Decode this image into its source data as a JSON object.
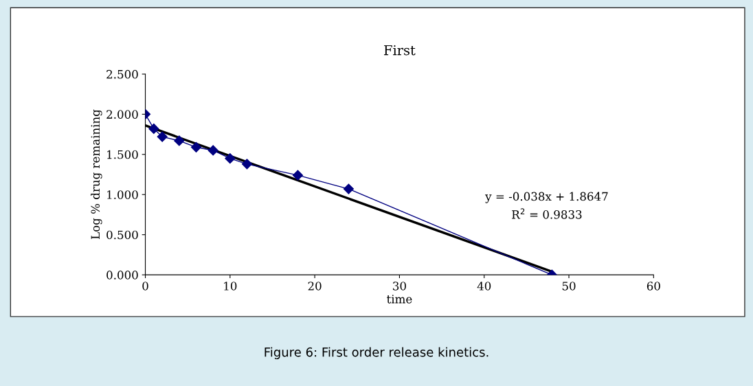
{
  "chart_data": {
    "type": "line",
    "title": "First",
    "xlabel": "time",
    "ylabel": "Log % drug remaining",
    "xlim": [
      0,
      60
    ],
    "xticks": [
      0,
      10,
      20,
      30,
      40,
      50,
      60
    ],
    "ylim": [
      0,
      2.5
    ],
    "yticks": [
      {
        "value": 0,
        "label": "0.000"
      },
      {
        "value": 0.5,
        "label": "0.500"
      },
      {
        "value": 1.0,
        "label": "1.000"
      },
      {
        "value": 1.5,
        "label": "1.500"
      },
      {
        "value": 2.0,
        "label": "2.000"
      },
      {
        "value": 2.5,
        "label": "2.500"
      }
    ],
    "grid": false,
    "marker": "diamond",
    "line_style": "solid",
    "series": [
      {
        "color": "#000080",
        "x": [
          0,
          1,
          2,
          4,
          6,
          8,
          10,
          12,
          18,
          24,
          48
        ],
        "values": [
          2.0,
          1.82,
          1.72,
          1.67,
          1.59,
          1.55,
          1.45,
          1.38,
          1.24,
          1.07,
          0.0
        ]
      },
      {
        "type": "line",
        "marker": "none",
        "color": "#000000",
        "x": [
          0,
          48
        ],
        "values": [
          1.86,
          0.04
        ]
      }
    ],
    "annotations": [
      "y = -0.038x + 1.8647",
      "R$^{2}$ = 0.9833",
      "Figure 6: First order release kinetics."
    ]
  }
}
